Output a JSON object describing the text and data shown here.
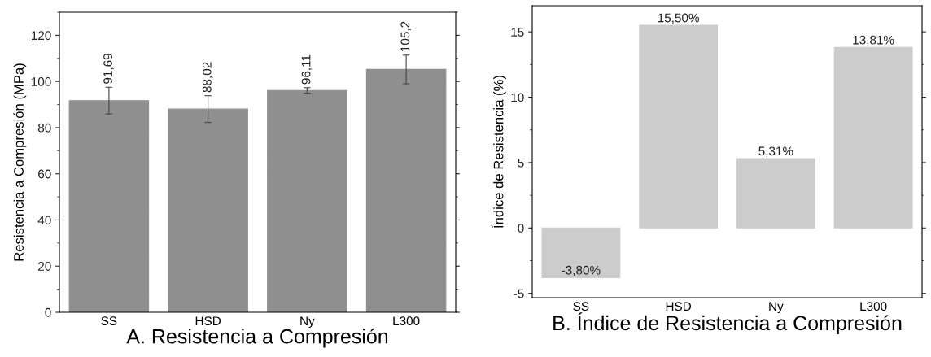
{
  "chart_data": [
    {
      "type": "bar",
      "title": "A. Resistencia a Compresión",
      "ylabel": "Resistencia a Compresión (MPa)",
      "categories": [
        "SS",
        "HSD",
        "Ny",
        "L300"
      ],
      "values": [
        91.69,
        88.02,
        96.11,
        105.2
      ],
      "errors": [
        5.8,
        5.8,
        1.2,
        6.2
      ],
      "value_labels": [
        "91,69",
        "88,02",
        "96,11",
        "105,2"
      ],
      "color": "#8f8f8f",
      "ylim": [
        0,
        130
      ],
      "yticks": [
        0,
        20,
        40,
        60,
        80,
        100,
        120
      ],
      "grid": false,
      "legend": false
    },
    {
      "type": "bar",
      "title": "B. Índice de Resistencia a Compresión",
      "ylabel": "Índice de Resistencia (%)",
      "categories": [
        "SS",
        "HSD",
        "Ny",
        "L300"
      ],
      "values": [
        -3.8,
        15.5,
        5.31,
        13.81
      ],
      "value_labels": [
        "-3,80%",
        "15,50%",
        "5,31%",
        "13,81%"
      ],
      "color": "#cccccc",
      "ylim": [
        -5.33,
        17
      ],
      "yticks": [
        -5,
        0,
        5,
        10,
        15
      ],
      "grid": false,
      "legend": false
    }
  ]
}
